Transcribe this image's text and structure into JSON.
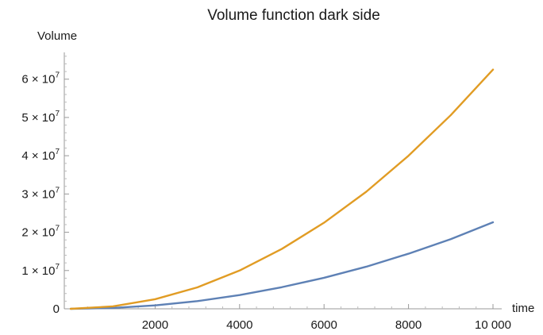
{
  "chart_data": {
    "type": "line",
    "title": "Volume function dark side",
    "xlabel": "time",
    "ylabel": "Volume",
    "xlim": [
      0,
      10000
    ],
    "ylim": [
      0,
      67000000
    ],
    "x_ticks": [
      {
        "value": 2000,
        "label": "2000"
      },
      {
        "value": 4000,
        "label": "4000"
      },
      {
        "value": 6000,
        "label": "6000"
      },
      {
        "value": 8000,
        "label": "8000"
      },
      {
        "value": 10000,
        "label": "10 000"
      }
    ],
    "y_ticks": [
      {
        "value": 0,
        "mantissa": "0",
        "exponent": ""
      },
      {
        "value": 10000000,
        "mantissa": "1 × 10",
        "exponent": "7"
      },
      {
        "value": 20000000,
        "mantissa": "2 × 10",
        "exponent": "7"
      },
      {
        "value": 30000000,
        "mantissa": "3 × 10",
        "exponent": "7"
      },
      {
        "value": 40000000,
        "mantissa": "4 × 10",
        "exponent": "7"
      },
      {
        "value": 50000000,
        "mantissa": "5 × 10",
        "exponent": "7"
      },
      {
        "value": 60000000,
        "mantissa": "6 × 10",
        "exponent": "7"
      }
    ],
    "grid": false,
    "legend": "none",
    "x": [
      0,
      1000,
      2000,
      3000,
      4000,
      5000,
      6000,
      7000,
      8000,
      9000,
      10000
    ],
    "series": [
      {
        "color": "#5e81b5",
        "values": [
          0,
          230000,
          900000,
          2000000,
          3600000,
          5650000,
          8100000,
          11000000,
          14400000,
          18200000,
          22600000
        ]
      },
      {
        "color": "#e19c24",
        "values": [
          0,
          630000,
          2500000,
          5600000,
          10000000,
          15650000,
          22500000,
          30600000,
          40000000,
          50600000,
          62500000
        ]
      }
    ]
  }
}
